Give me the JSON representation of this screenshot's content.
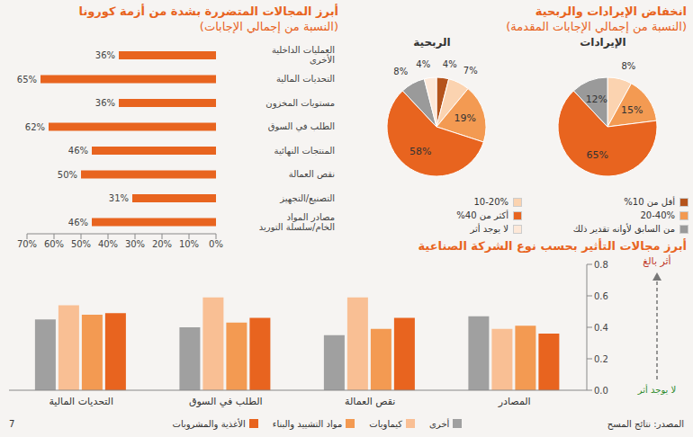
{
  "chart_data": [
    {
      "type": "bar",
      "orientation": "horizontal",
      "title": "أبرز المجالات المتضررة بشدة من أزمة كورونا",
      "subtitle": "(النسبة من إجمالي الإجابات)",
      "categories": [
        "العمليات الداخلية الأخرى",
        "التحديات المالية",
        "مستويات المخزون",
        "الطلب في السوق",
        "المنتجات النهائية",
        "نقص العمالة",
        "التصنيع/التجهيز",
        "مصادر المواد الخام/سلسلة التوريد"
      ],
      "values": [
        36,
        65,
        36,
        62,
        46,
        50,
        31,
        46
      ],
      "value_labels": [
        "36%",
        "65%",
        "36%",
        "62%",
        "46%",
        "50%",
        "31%",
        "46%"
      ],
      "color": "#e8641f",
      "xlim": [
        0,
        70
      ],
      "xticks": [
        {
          "value": 0,
          "label": "0%"
        },
        {
          "value": 10,
          "label": "10%"
        },
        {
          "value": 20,
          "label": "20%"
        },
        {
          "value": 30,
          "label": "30%"
        },
        {
          "value": 40,
          "label": "40%"
        },
        {
          "value": 50,
          "label": "50%"
        },
        {
          "value": 60,
          "label": "60%"
        },
        {
          "value": 70,
          "label": "70%"
        }
      ],
      "data_labels": true,
      "grid": false
    },
    {
      "type": "pie",
      "title": "انخفاض الإيرادات والربحية",
      "subtitle": "(النسبة من إجمالي الإجابات المقدمة)",
      "categories": [
        "أقل من 10%",
        "10-20%",
        "20-40%",
        "أكثر من 40%",
        "من السابق لأوانه تقدير ذلك",
        "لا يوجد أثر"
      ],
      "colors": [
        "#b5541c",
        "#fbd3b0",
        "#f39a52",
        "#e8641f",
        "#9a9a9a",
        "#fde8d8"
      ],
      "series": [
        {
          "name": "الإيرادات",
          "values": [
            null,
            8,
            15,
            65,
            12,
            null
          ],
          "value_labels": [
            null,
            "8%",
            "15%",
            "65%",
            "12%",
            null
          ]
        },
        {
          "name": "الربحية",
          "values": [
            4,
            7,
            19,
            58,
            8,
            4
          ],
          "value_labels": [
            "4%",
            "7%",
            "19%",
            "58%",
            "8%",
            "4%"
          ]
        }
      ],
      "data_labels": true,
      "legend": "bottom"
    },
    {
      "type": "bar",
      "title": "أبرز مجالات التأثير بحسب نوع الشركة الصناعية",
      "categories": [
        "التحديات المالية",
        "الطلب في السوق",
        "نقص العمالة",
        "المصادر"
      ],
      "series": [
        {
          "name": "أخرى",
          "color": "#a0a0a0",
          "values": [
            0.45,
            0.4,
            0.35,
            0.47
          ]
        },
        {
          "name": "كيماويات",
          "color": "#f9bf94",
          "values": [
            0.54,
            0.59,
            0.59,
            0.39
          ]
        },
        {
          "name": "مواد التشييد والبناء",
          "color": "#f39a52",
          "values": [
            0.48,
            0.43,
            0.39,
            0.41
          ]
        },
        {
          "name": "الأغذية والمشروبات",
          "color": "#e8641f",
          "values": [
            0.49,
            0.46,
            0.46,
            0.36
          ]
        }
      ],
      "ylim": [
        0,
        0.8
      ],
      "yticks": [
        {
          "value": 0,
          "label": "0.0"
        },
        0.2,
        0.4,
        0.6,
        0.8
      ],
      "grid": false,
      "legend": "bottom",
      "annotations": {
        "top": "أثر بالغ",
        "bottom": "لا يوجد أثر"
      }
    }
  ],
  "footer": {
    "source": "المصدر: نتائج المسح",
    "page": 7
  }
}
